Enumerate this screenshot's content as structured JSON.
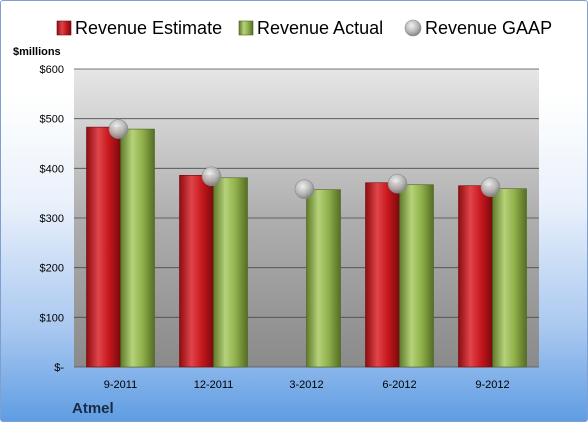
{
  "chart_data": {
    "type": "bar",
    "company": "Atmel",
    "unit_label": "$millions",
    "categories": [
      "9-2011",
      "12-2011",
      "3-2012",
      "6-2012",
      "9-2012"
    ],
    "series": [
      {
        "name": "Revenue Estimate",
        "kind": "bar",
        "color": "#c8181e",
        "values": [
          483,
          386,
          null,
          371,
          365
        ]
      },
      {
        "name": "Revenue Actual",
        "kind": "bar",
        "color": "#8fb04a",
        "values": [
          479,
          381,
          357,
          367,
          359
        ]
      },
      {
        "name": "Revenue GAAP",
        "kind": "marker",
        "color": "#a6a6a6",
        "values": [
          479,
          384,
          358,
          369,
          362
        ]
      }
    ],
    "ylim": [
      0,
      600
    ],
    "yticks": [
      {
        "value": 0,
        "label": "$-"
      },
      {
        "value": 100,
        "label": "$100"
      },
      {
        "value": 200,
        "label": "$200"
      },
      {
        "value": 300,
        "label": "$300"
      },
      {
        "value": 400,
        "label": "$400"
      },
      {
        "value": 500,
        "label": "$500"
      },
      {
        "value": 600,
        "label": "$600"
      }
    ],
    "grid": true,
    "legend_position": "top"
  }
}
